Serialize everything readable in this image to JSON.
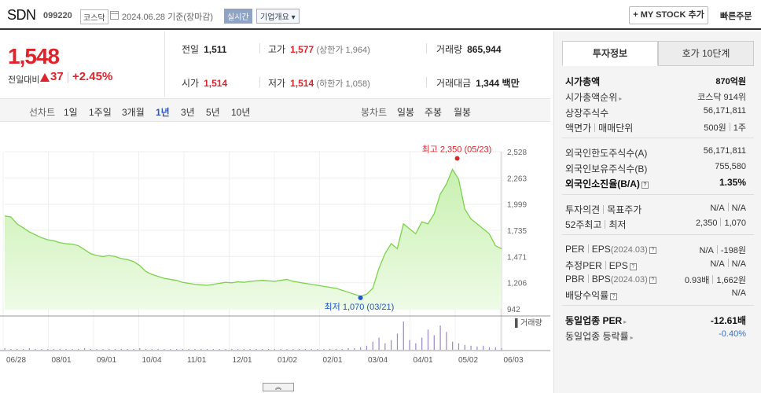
{
  "header": {
    "name": "SDN",
    "code": "099220",
    "market": "코스닥",
    "date": "2024.06.28  기준(장마감)",
    "realtime": "실시간",
    "overview": "기업개요 ▾",
    "mystock": "+ MY STOCK 추가",
    "quick_order": "빠른주문"
  },
  "price": {
    "current": "1,548",
    "change_label": "전일대비",
    "change": "37",
    "change_pct": "+2.45%"
  },
  "stats": {
    "prev_label": "전일",
    "prev": "1,511",
    "high_label": "고가",
    "high": "1,577",
    "upper_limit": "(상한가 1,964)",
    "volume_label": "거래량",
    "volume": "865,944",
    "open_label": "시가",
    "open": "1,514",
    "low_label": "저가",
    "low": "1,514",
    "lower_limit": "(하한가 1,058)",
    "amount_label": "거래대금",
    "amount": "1,344 백만"
  },
  "chart_nav": {
    "line_label": "선차트",
    "periods": [
      "1일",
      "1주일",
      "3개월",
      "1년",
      "3년",
      "5년",
      "10년"
    ],
    "active_period": "1년",
    "candle_label": "봉차트",
    "candles": [
      "일봉",
      "주봉",
      "월봉"
    ]
  },
  "chart_data": {
    "type": "area",
    "x_labels": [
      "06/28",
      "08/01",
      "09/01",
      "10/04",
      "11/01",
      "12/01",
      "01/02",
      "02/01",
      "03/04",
      "04/01",
      "05/02",
      "06/03"
    ],
    "y_ticks": [
      2528,
      2263,
      1999,
      1735,
      1471,
      1206,
      942
    ],
    "ylim": [
      942,
      2528
    ],
    "values": [
      1880,
      1870,
      1800,
      1760,
      1720,
      1690,
      1660,
      1640,
      1630,
      1610,
      1600,
      1595,
      1580,
      1540,
      1500,
      1480,
      1470,
      1480,
      1470,
      1450,
      1440,
      1420,
      1380,
      1320,
      1290,
      1270,
      1250,
      1240,
      1230,
      1210,
      1200,
      1190,
      1185,
      1180,
      1190,
      1200,
      1210,
      1205,
      1215,
      1210,
      1220,
      1225,
      1230,
      1225,
      1220,
      1230,
      1240,
      1220,
      1210,
      1200,
      1190,
      1180,
      1170,
      1160,
      1150,
      1130,
      1110,
      1090,
      1070,
      1090,
      1150,
      1350,
      1500,
      1600,
      1550,
      1800,
      1750,
      1700,
      1820,
      1800,
      1900,
      2100,
      2200,
      2350,
      2250,
      1950,
      1850,
      1800,
      1750,
      1700,
      1580,
      1548
    ],
    "high_annotation": "최고 2,350 (05/23)",
    "low_annotation": "최저 1,070 (03/21)",
    "high_value": 2350,
    "low_value": 1070,
    "volume_label": "▌거래량",
    "volume_values": [
      2,
      1,
      1,
      1,
      2,
      1,
      1,
      1,
      1,
      1,
      1,
      1,
      1,
      2,
      1,
      1,
      1,
      1,
      1,
      1,
      1,
      1,
      2,
      1,
      1,
      1,
      1,
      1,
      1,
      1,
      1,
      1,
      1,
      1,
      1,
      1,
      1,
      1,
      1,
      1,
      1,
      1,
      1,
      1,
      1,
      1,
      1,
      1,
      1,
      1,
      1,
      1,
      1,
      1,
      1,
      1,
      2,
      2,
      3,
      5,
      10,
      15,
      8,
      12,
      20,
      35,
      12,
      8,
      15,
      25,
      18,
      30,
      22,
      10,
      8,
      6,
      5,
      4,
      5,
      3,
      3,
      2
    ]
  },
  "scroll": "︽",
  "right_panel": {
    "tabs": [
      "투자정보",
      "호가 10단계"
    ],
    "active_tab": "투자정보",
    "market_cap_label": "시가총액",
    "market_cap": "870억원",
    "market_cap_rank_label": "시가총액순위",
    "market_cap_rank": "코스닥 914위",
    "listed_shares_label": "상장주식수",
    "listed_shares": "56,171,811",
    "face_label_a": "액면가",
    "face_label_b": "매매단위",
    "face_value": "500원",
    "trade_unit": "1주",
    "foreign_limit_label": "외국인한도주식수(A)",
    "foreign_limit": "56,171,811",
    "foreign_hold_label": "외국인보유주식수(B)",
    "foreign_hold": "755,580",
    "foreign_ratio_label": "외국인소진율(B/A)",
    "foreign_ratio": "1.35%",
    "opinion_label_a": "투자의견",
    "opinion_label_b": "목표주가",
    "opinion": "N/A",
    "target": "N/A",
    "w52_label_a": "52주최고",
    "w52_label_b": "최저",
    "w52_high": "2,350",
    "w52_low": "1,070",
    "per_label_a": "PER",
    "per_label_b": "EPS",
    "per_period": "(2024.03)",
    "per": "N/A",
    "eps": "-198원",
    "est_per_label_a": "추정PER",
    "est_per_label_b": "EPS",
    "est_per": "N/A",
    "est_eps": "N/A",
    "pbr_label_a": "PBR",
    "pbr_label_b": "BPS",
    "pbr_period": "(2024.03)",
    "pbr": "0.93배",
    "bps": "1,662원",
    "dividend_label": "배당수익률",
    "dividend": "N/A",
    "sector_per_label": "동일업종 PER",
    "sector_per": "-12.61배",
    "sector_rate_label": "동일업종 등락률",
    "sector_rate": "-0.40%"
  }
}
